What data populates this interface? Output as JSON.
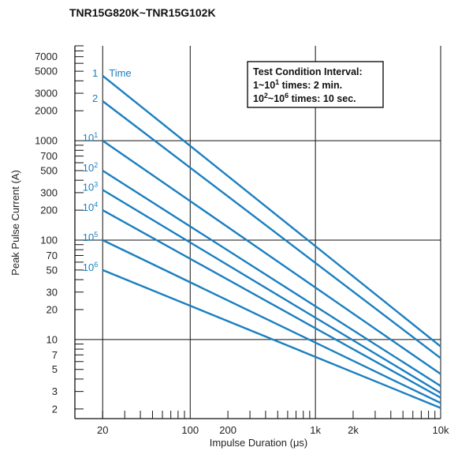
{
  "chart_data": {
    "type": "line",
    "title": "TNR15G820K~TNR15G102K",
    "xlabel": "Impulse Duration (μs)",
    "ylabel": "Peak Pulse Current (A)",
    "x_scale": "log",
    "y_scale": "log",
    "xlim": [
      12,
      10000
    ],
    "ylim": [
      1.6,
      9000
    ],
    "grid": true,
    "x_major_ticks": [
      10,
      100,
      1000,
      10000
    ],
    "x_tick_labels": [
      {
        "value": 20,
        "label": "20"
      },
      {
        "value": 100,
        "label": "100"
      },
      {
        "value": 200,
        "label": "200"
      },
      {
        "value": 1000,
        "label": "1k"
      },
      {
        "value": 2000,
        "label": "2k"
      },
      {
        "value": 10000,
        "label": "10k"
      }
    ],
    "y_tick_labels": [
      {
        "value": 2,
        "label": "2"
      },
      {
        "value": 3,
        "label": "3"
      },
      {
        "value": 5,
        "label": "5"
      },
      {
        "value": 7,
        "label": "7"
      },
      {
        "value": 10,
        "label": "10"
      },
      {
        "value": 20,
        "label": "20"
      },
      {
        "value": 30,
        "label": "30"
      },
      {
        "value": 50,
        "label": "50"
      },
      {
        "value": 70,
        "label": "70"
      },
      {
        "value": 100,
        "label": "100"
      },
      {
        "value": 200,
        "label": "200"
      },
      {
        "value": 300,
        "label": "300"
      },
      {
        "value": 500,
        "label": "500"
      },
      {
        "value": 700,
        "label": "700"
      },
      {
        "value": 1000,
        "label": "1000"
      },
      {
        "value": 2000,
        "label": "2000"
      },
      {
        "value": 3000,
        "label": "3000"
      },
      {
        "value": 5000,
        "label": "5000"
      },
      {
        "value": 7000,
        "label": "7000"
      }
    ],
    "series_title": "Time",
    "series": [
      {
        "label_base": "1",
        "label_exp": "",
        "points": [
          [
            20,
            4500
          ],
          [
            10000,
            8.5
          ]
        ]
      },
      {
        "label_base": "2",
        "label_exp": "",
        "points": [
          [
            20,
            2500
          ],
          [
            10000,
            6.5
          ]
        ]
      },
      {
        "label_base": "10",
        "label_exp": "1",
        "points": [
          [
            20,
            1000
          ],
          [
            10000,
            4.5
          ]
        ]
      },
      {
        "label_base": "10",
        "label_exp": "2",
        "points": [
          [
            20,
            500
          ],
          [
            10000,
            3.4
          ]
        ]
      },
      {
        "label_base": "10",
        "label_exp": "3",
        "points": [
          [
            20,
            320
          ],
          [
            10000,
            2.9
          ]
        ]
      },
      {
        "label_base": "10",
        "label_exp": "4",
        "points": [
          [
            20,
            200
          ],
          [
            10000,
            2.6
          ]
        ]
      },
      {
        "label_base": "10",
        "label_exp": "5",
        "points": [
          [
            20,
            100
          ],
          [
            10000,
            2.3
          ]
        ]
      },
      {
        "label_base": "10",
        "label_exp": "6",
        "points": [
          [
            20,
            50
          ],
          [
            10000,
            2.05
          ]
        ]
      }
    ],
    "annotation": {
      "line1": "Test Condition Interval:",
      "line2_a": "1~10",
      "line2_sup": "1",
      "line2_b": " times: 2 min.",
      "line3_a": "10",
      "line3_sup1": "2",
      "line3_b": "~10",
      "line3_sup2": "6",
      "line3_c": " times: 10 sec."
    },
    "colors": {
      "series": "#1a7fc0",
      "grid": "#111111",
      "axis": "#111111"
    }
  }
}
